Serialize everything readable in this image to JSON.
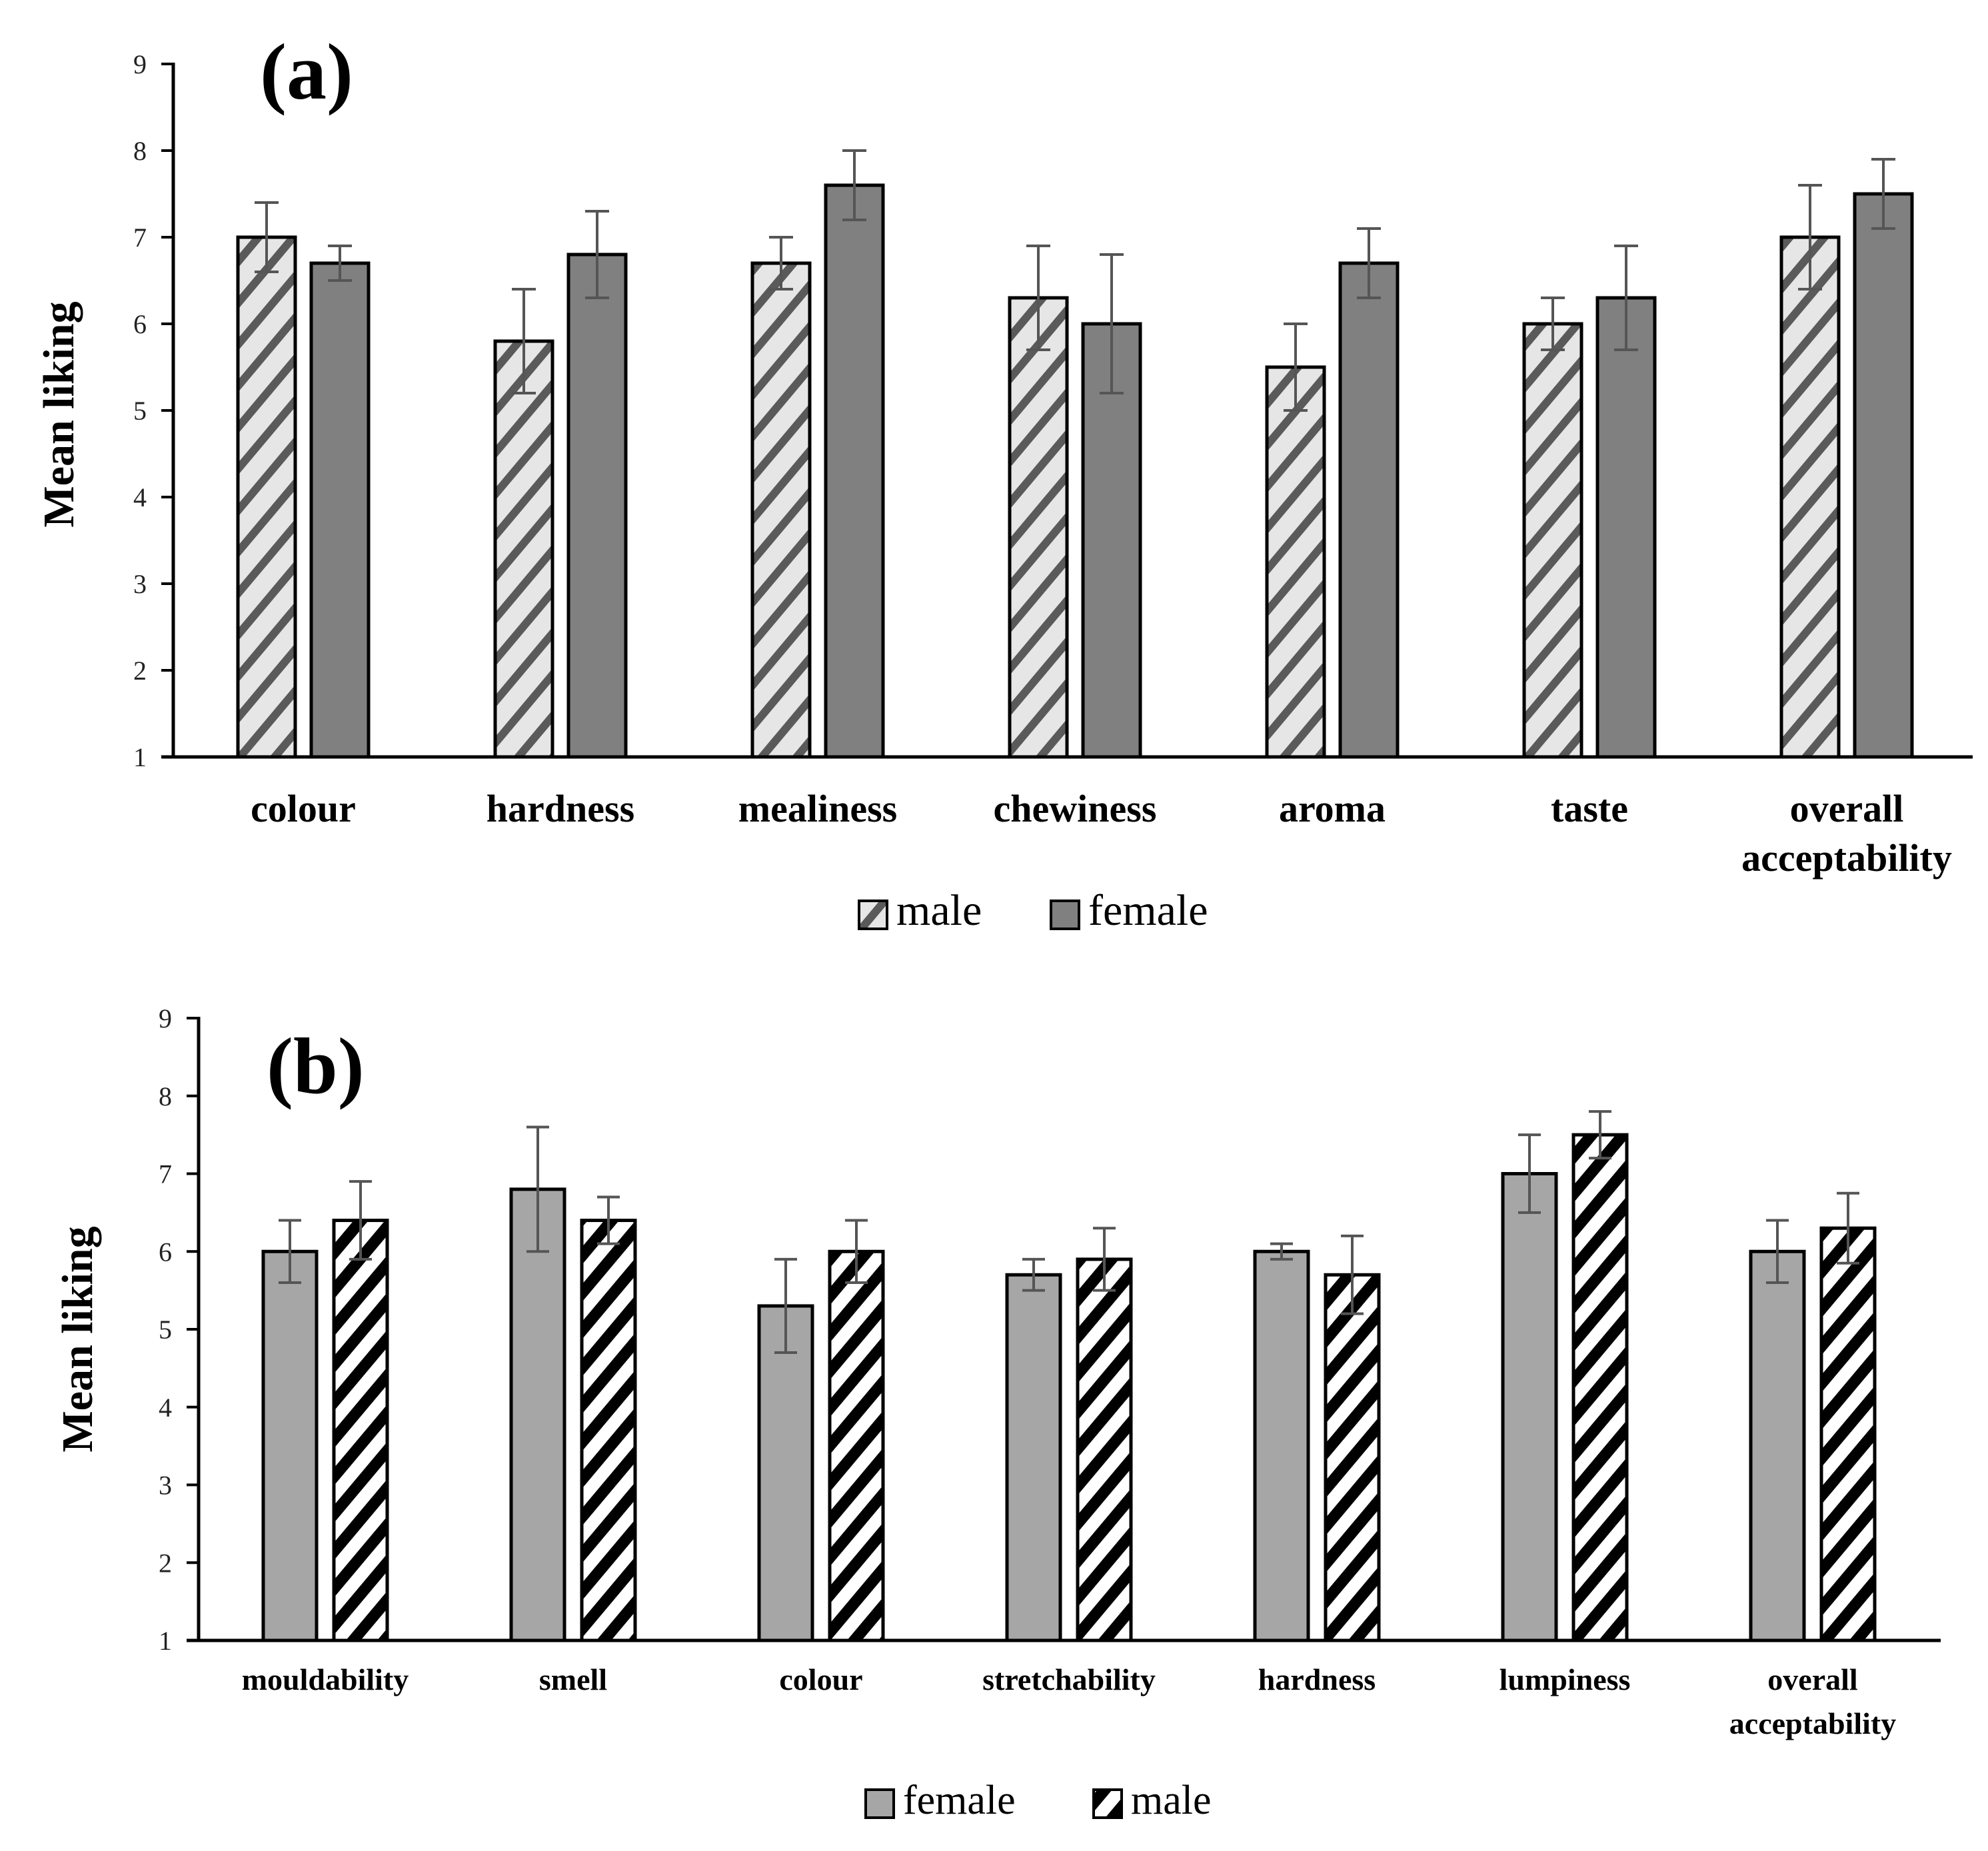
{
  "chart_data": [
    {
      "type": "bar",
      "panel_label": "(a)",
      "ylabel": "Mean liking",
      "ylim": [
        1,
        9
      ],
      "yticks": [
        "1",
        "2",
        "3",
        "4",
        "5",
        "6",
        "7",
        "8",
        "9"
      ],
      "categories": [
        [
          "colour"
        ],
        [
          "hardness"
        ],
        [
          "mealiness"
        ],
        [
          "chewiness"
        ],
        [
          "aroma"
        ],
        [
          "taste"
        ],
        [
          "overall",
          "acceptability"
        ]
      ],
      "series": [
        {
          "name": "male",
          "pattern": "light-hatch",
          "values": [
            7.0,
            5.8,
            6.7,
            6.3,
            5.5,
            6.0,
            7.0
          ],
          "errors": [
            0.4,
            0.6,
            0.3,
            0.6,
            0.5,
            0.3,
            0.6
          ]
        },
        {
          "name": "female",
          "pattern": "solid-dark",
          "values": [
            6.7,
            6.8,
            7.6,
            6.0,
            6.7,
            6.3,
            7.5
          ],
          "errors": [
            0.2,
            0.5,
            0.4,
            0.8,
            0.4,
            0.6,
            0.4
          ]
        }
      ],
      "legend": [
        "male",
        "female"
      ],
      "legend_position": "bottom-center"
    },
    {
      "type": "bar",
      "panel_label": "(b)",
      "ylabel": "Mean liking",
      "ylim": [
        1,
        9
      ],
      "yticks": [
        "1",
        "2",
        "3",
        "4",
        "5",
        "6",
        "7",
        "8",
        "9"
      ],
      "categories": [
        [
          "mouldability"
        ],
        [
          "smell"
        ],
        [
          "colour"
        ],
        [
          "stretchability"
        ],
        [
          "hardness"
        ],
        [
          "lumpiness"
        ],
        [
          "overall",
          "acceptability"
        ]
      ],
      "series": [
        {
          "name": "female",
          "pattern": "solid-light",
          "values": [
            6.0,
            6.8,
            5.3,
            5.7,
            6.0,
            7.0,
            6.0
          ],
          "errors": [
            0.4,
            0.8,
            0.6,
            0.2,
            0.1,
            0.5,
            0.4
          ]
        },
        {
          "name": "male",
          "pattern": "bold-hatch",
          "values": [
            6.4,
            6.4,
            6.0,
            5.9,
            5.7,
            7.5,
            6.3
          ],
          "errors": [
            0.5,
            0.3,
            0.4,
            0.4,
            0.5,
            0.3,
            0.45
          ]
        }
      ],
      "legend": [
        "female",
        "male"
      ],
      "legend_position": "bottom-center"
    }
  ],
  "colors": {
    "axis": "#000000",
    "error_bar": "#555555",
    "tick_text": "#222222",
    "light_hatch_bg": "#e6e6e6",
    "light_hatch_line": "#5a5a5a",
    "solid_dark": "#808080",
    "solid_light": "#a6a6a6",
    "bold_hatch_bg": "#ffffff",
    "bold_hatch_line": "#000000"
  }
}
